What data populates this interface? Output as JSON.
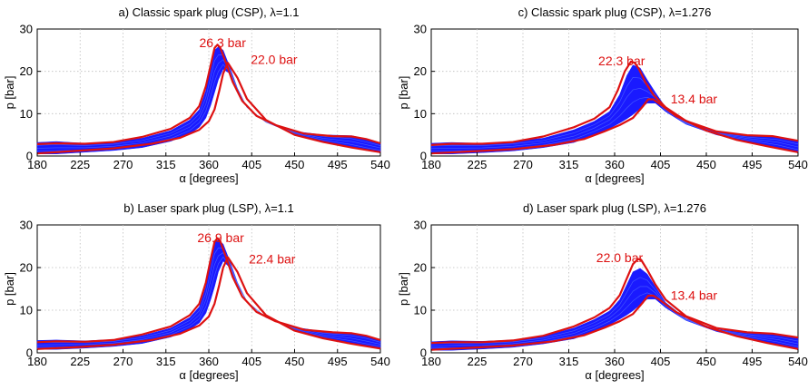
{
  "chart_data": [
    {
      "type": "line",
      "title": "a) Classic spark plug (CSP), λ=1.1",
      "xlabel": "α [degrees]",
      "ylabel": "p [bar]",
      "xlim": [
        180,
        540
      ],
      "ylim": [
        0,
        30
      ],
      "xticks": [
        "180",
        "225",
        "270",
        "315",
        "360",
        "405",
        "450",
        "495",
        "540"
      ],
      "yticks": [
        "0",
        "10",
        "20",
        "30"
      ],
      "grid": true,
      "band_color": "#1a1aff",
      "bound_color": "#dd1111",
      "band_x": [
        180,
        200,
        230,
        260,
        290,
        320,
        340,
        350,
        357,
        362,
        366,
        370,
        375,
        382,
        390,
        400,
        420,
        450,
        480,
        510,
        525,
        540
      ],
      "band_lower": [
        0.5,
        0.5,
        0.9,
        1.3,
        2.0,
        3.5,
        5.2,
        6.8,
        9.0,
        12.0,
        15.0,
        18.0,
        20.5,
        19.5,
        15.5,
        11.5,
        8.0,
        5.2,
        3.4,
        2.0,
        1.3,
        0.8
      ],
      "band_upper": [
        3.2,
        3.4,
        3.0,
        3.3,
        4.2,
        6.0,
        8.5,
        11.0,
        15.5,
        21.0,
        25.0,
        25.8,
        25.0,
        21.0,
        16.0,
        11.5,
        8.0,
        5.8,
        5.0,
        4.8,
        4.0,
        3.0
      ],
      "series": [
        {
          "x": [
            180,
            200,
            230,
            260,
            290,
            320,
            340,
            350,
            357,
            362,
            366,
            369,
            372,
            378,
            385,
            395,
            410,
            430,
            460,
            490,
            510,
            525,
            540
          ],
          "values": [
            2.8,
            3.0,
            2.9,
            3.3,
            4.5,
            6.4,
            9.0,
            11.8,
            16.5,
            21.5,
            25.5,
            26.3,
            25.6,
            22.0,
            17.5,
            13.0,
            9.5,
            7.3,
            5.3,
            4.7,
            4.6,
            4.0,
            3.0
          ]
        },
        {
          "x": [
            180,
            220,
            260,
            300,
            330,
            350,
            360,
            366,
            371,
            375,
            380,
            390,
            400,
            420,
            450,
            480,
            510,
            540
          ],
          "values": [
            0.6,
            1.2,
            1.8,
            2.9,
            4.3,
            6.2,
            8.2,
            11.0,
            15.5,
            19.5,
            22.0,
            18.5,
            13.5,
            8.5,
            5.0,
            3.3,
            2.0,
            0.9
          ]
        }
      ],
      "annotations": [
        {
          "text": "26.3 bar",
          "x": 350,
          "y": 25.7
        },
        {
          "text": "22.0 bar",
          "x": 404,
          "y": 21.7
        }
      ]
    },
    {
      "type": "line",
      "title": "c) Classic spark plug (CSP), λ=1.276",
      "xlabel": "α [degrees]",
      "ylabel": "p [bar]",
      "xlim": [
        180,
        540
      ],
      "ylim": [
        0,
        30
      ],
      "xticks": [
        "180",
        "225",
        "270",
        "315",
        "360",
        "405",
        "450",
        "495",
        "540"
      ],
      "yticks": [
        "0",
        "10",
        "20",
        "30"
      ],
      "grid": true,
      "band_color": "#1a1aff",
      "bound_color": "#dd1111",
      "band_x": [
        180,
        200,
        230,
        260,
        290,
        320,
        340,
        355,
        365,
        372,
        378,
        385,
        392,
        400,
        410,
        430,
        460,
        490,
        520,
        540
      ],
      "band_lower": [
        0.5,
        0.5,
        0.8,
        1.2,
        2.0,
        3.2,
        5.0,
        6.5,
        7.8,
        8.8,
        9.8,
        11.2,
        12.5,
        12.5,
        10.5,
        7.5,
        5.0,
        3.5,
        2.0,
        0.8
      ],
      "band_upper": [
        3.0,
        3.2,
        3.0,
        3.4,
        4.2,
        6.2,
        8.2,
        10.5,
        14.5,
        19.0,
        21.5,
        20.8,
        18.0,
        15.0,
        11.5,
        8.0,
        5.6,
        4.8,
        4.5,
        3.5
      ],
      "series": [
        {
          "x": [
            180,
            200,
            230,
            260,
            290,
            320,
            340,
            355,
            363,
            370,
            376,
            380,
            384,
            390,
            398,
            410,
            430,
            460,
            490,
            515,
            540
          ],
          "values": [
            2.6,
            2.9,
            2.9,
            3.3,
            4.6,
            6.8,
            8.8,
            11.5,
            15.5,
            20.0,
            22.3,
            22.0,
            20.5,
            17.5,
            14.5,
            11.5,
            8.3,
            5.8,
            4.9,
            4.7,
            3.6
          ]
        },
        {
          "x": [
            180,
            220,
            260,
            300,
            330,
            350,
            365,
            378,
            388,
            393,
            398,
            405,
            420,
            450,
            480,
            510,
            540
          ],
          "values": [
            0.6,
            1.1,
            1.6,
            2.6,
            4.0,
            5.8,
            7.3,
            9.0,
            11.8,
            13.4,
            13.4,
            12.2,
            9.5,
            6.0,
            3.8,
            2.3,
            0.9
          ]
        }
      ],
      "annotations": [
        {
          "text": "22.3 bar",
          "x": 344,
          "y": 21.4
        },
        {
          "text": "13.4 bar",
          "x": 415,
          "y": 12.4
        }
      ]
    },
    {
      "type": "line",
      "title": "b) Laser spark plug (LSP), λ=1.1",
      "xlabel": "α [degrees]",
      "ylabel": "p [bar]",
      "xlim": [
        180,
        540
      ],
      "ylim": [
        0,
        30
      ],
      "xticks": [
        "180",
        "225",
        "270",
        "315",
        "360",
        "405",
        "450",
        "495",
        "540"
      ],
      "yticks": [
        "0",
        "10",
        "20",
        "30"
      ],
      "grid": true,
      "band_color": "#1a1aff",
      "bound_color": "#dd1111",
      "band_x": [
        180,
        200,
        230,
        260,
        290,
        320,
        340,
        350,
        357,
        362,
        366,
        370,
        375,
        382,
        390,
        400,
        420,
        450,
        480,
        510,
        525,
        540
      ],
      "band_lower": [
        0.8,
        0.8,
        1.1,
        1.5,
        2.2,
        3.7,
        5.5,
        7.0,
        9.3,
        12.5,
        15.5,
        19.0,
        21.5,
        20.0,
        16.0,
        12.0,
        8.3,
        5.4,
        3.5,
        2.2,
        1.5,
        1.0
      ],
      "band_upper": [
        2.9,
        3.0,
        2.8,
        3.1,
        4.0,
        5.8,
        8.3,
        10.8,
        15.5,
        21.5,
        25.8,
        26.5,
        25.5,
        21.5,
        16.5,
        12.0,
        8.3,
        6.0,
        5.0,
        4.6,
        4.0,
        3.0
      ],
      "series": [
        {
          "x": [
            180,
            200,
            230,
            260,
            290,
            320,
            340,
            350,
            357,
            362,
            366,
            369,
            372,
            378,
            385,
            395,
            410,
            430,
            460,
            490,
            510,
            525,
            540
          ],
          "values": [
            2.5,
            2.7,
            2.6,
            3.0,
            4.3,
            6.2,
            8.8,
            11.5,
            16.5,
            22.0,
            26.0,
            26.9,
            26.2,
            22.5,
            17.8,
            13.2,
            9.6,
            7.4,
            5.4,
            4.8,
            4.6,
            4.0,
            3.0
          ]
        },
        {
          "x": [
            180,
            220,
            260,
            300,
            330,
            350,
            360,
            366,
            371,
            375,
            380,
            390,
            400,
            420,
            450,
            480,
            510,
            540
          ],
          "values": [
            0.9,
            1.3,
            1.9,
            3.0,
            4.5,
            6.4,
            8.5,
            11.5,
            16.0,
            20.0,
            22.4,
            19.0,
            14.0,
            8.8,
            5.2,
            3.4,
            2.1,
            1.0
          ]
        }
      ],
      "annotations": [
        {
          "text": "26.9 bar",
          "x": 348,
          "y": 26.0
        },
        {
          "text": "22.4 bar",
          "x": 402,
          "y": 21.0
        }
      ]
    },
    {
      "type": "line",
      "title": "d) Laser spark plug (LSP), λ=1.276",
      "xlabel": "α [degrees]",
      "ylabel": "p [bar]",
      "xlim": [
        180,
        540
      ],
      "ylim": [
        0,
        30
      ],
      "xticks": [
        "180",
        "225",
        "270",
        "315",
        "360",
        "405",
        "450",
        "495",
        "540"
      ],
      "yticks": [
        "0",
        "10",
        "20",
        "30"
      ],
      "grid": true,
      "band_color": "#1a1aff",
      "bound_color": "#dd1111",
      "band_x": [
        180,
        200,
        230,
        260,
        290,
        320,
        340,
        355,
        365,
        372,
        378,
        385,
        392,
        400,
        410,
        430,
        460,
        490,
        520,
        540
      ],
      "band_lower": [
        0.6,
        0.6,
        0.9,
        1.3,
        2.1,
        3.3,
        5.0,
        6.6,
        7.9,
        8.9,
        9.9,
        11.3,
        12.6,
        12.6,
        10.6,
        7.6,
        5.0,
        3.5,
        2.0,
        0.8
      ],
      "band_upper": [
        2.6,
        2.8,
        2.7,
        3.0,
        3.9,
        5.8,
        7.8,
        9.8,
        12.5,
        16.0,
        19.0,
        19.8,
        18.5,
        15.5,
        11.8,
        8.0,
        5.5,
        4.6,
        4.2,
        3.4
      ],
      "series": [
        {
          "x": [
            180,
            200,
            230,
            260,
            290,
            320,
            340,
            355,
            365,
            372,
            378,
            383,
            386,
            392,
            400,
            410,
            430,
            460,
            490,
            515,
            540
          ],
          "values": [
            2.3,
            2.5,
            2.5,
            2.9,
            4.0,
            6.2,
            8.3,
            10.5,
            13.5,
            17.5,
            20.8,
            22.0,
            21.8,
            19.5,
            16.0,
            12.5,
            8.6,
            5.8,
            4.8,
            4.5,
            3.6
          ]
        },
        {
          "x": [
            180,
            220,
            260,
            300,
            330,
            350,
            365,
            378,
            388,
            393,
            398,
            405,
            420,
            450,
            480,
            510,
            540
          ],
          "values": [
            0.7,
            1.2,
            1.7,
            2.7,
            4.1,
            5.9,
            7.4,
            9.1,
            11.9,
            13.4,
            13.4,
            12.3,
            9.6,
            6.1,
            3.9,
            2.3,
            0.9
          ]
        }
      ],
      "annotations": [
        {
          "text": "22.0 bar",
          "x": 342,
          "y": 21.3
        },
        {
          "text": "13.4 bar",
          "x": 415,
          "y": 12.4
        }
      ]
    }
  ]
}
